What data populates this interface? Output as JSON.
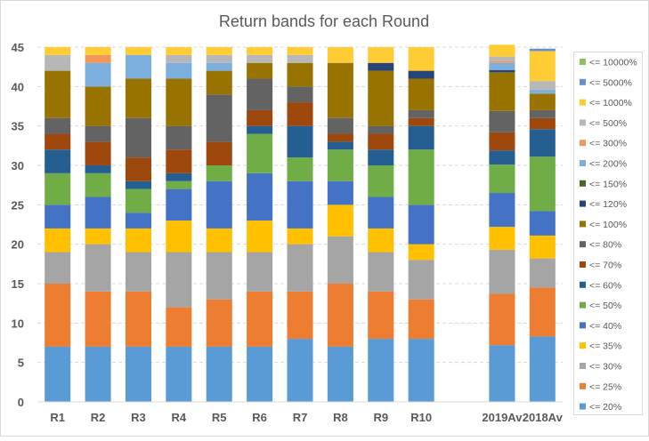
{
  "chart_data": {
    "type": "bar",
    "stacked": true,
    "title": "Return bands for each Round",
    "categories": [
      "R1",
      "R2",
      "R3",
      "R4",
      "R5",
      "R6",
      "R7",
      "R8",
      "R9",
      "R10",
      "",
      "2019Av",
      "2018Av"
    ],
    "ylim": [
      0,
      45
    ],
    "yticks": [
      0,
      5,
      10,
      15,
      20,
      25,
      30,
      35,
      40,
      45
    ],
    "grid": true,
    "legend_position": "right",
    "series": [
      {
        "name": "<= 20%",
        "color": "#5B9BD5",
        "values": [
          7,
          7,
          7,
          7,
          7,
          7,
          8,
          7,
          8,
          8,
          null,
          7.2,
          8.3
        ]
      },
      {
        "name": "<= 25%",
        "color": "#ED7D31",
        "values": [
          8,
          7,
          7,
          5,
          6,
          7,
          6,
          8,
          6,
          5,
          null,
          6.5,
          6.2
        ]
      },
      {
        "name": "<= 30%",
        "color": "#A5A5A5",
        "values": [
          4,
          6,
          5,
          7,
          6,
          5,
          6,
          6,
          5,
          5,
          null,
          5.6,
          3.7
        ]
      },
      {
        "name": "<= 35%",
        "color": "#FFC000",
        "values": [
          3,
          2,
          3,
          4,
          3,
          4,
          2,
          4,
          3,
          2,
          null,
          2.9,
          2.9
        ]
      },
      {
        "name": "<= 40%",
        "color": "#4472C4",
        "values": [
          3,
          4,
          2,
          4,
          6,
          6,
          6,
          3,
          4,
          5,
          null,
          4.3,
          3.1
        ]
      },
      {
        "name": "<= 50%",
        "color": "#70AD47",
        "values": [
          4,
          3,
          3,
          1,
          2,
          5,
          3,
          4,
          4,
          7,
          null,
          3.6,
          6.9
        ]
      },
      {
        "name": "<= 60%",
        "color": "#255E91",
        "values": [
          3,
          1,
          1,
          1,
          0,
          1,
          4,
          1,
          2,
          3,
          null,
          1.8,
          3.5
        ]
      },
      {
        "name": "<= 70%",
        "color": "#9E480E",
        "values": [
          2,
          3,
          3,
          3,
          3,
          2,
          3,
          1,
          2,
          1,
          null,
          2.3,
          1.4
        ]
      },
      {
        "name": "<= 80%",
        "color": "#636363",
        "values": [
          2,
          2,
          5,
          3,
          6,
          4,
          2,
          2,
          1,
          1,
          null,
          2.7,
          1.0
        ]
      },
      {
        "name": "<= 100%",
        "color": "#997300",
        "values": [
          6,
          5,
          5,
          6,
          3,
          2,
          3,
          7,
          7,
          4,
          null,
          4.9,
          2.1
        ]
      },
      {
        "name": "<= 120%",
        "color": "#264478",
        "values": [
          0,
          0,
          0,
          0,
          0,
          0,
          0,
          0,
          1,
          1,
          null,
          0.3,
          0.0
        ]
      },
      {
        "name": "<= 150%",
        "color": "#43682B",
        "values": [
          0,
          0,
          0,
          0,
          0,
          0,
          0,
          0,
          0,
          0,
          null,
          0.0,
          0.0
        ]
      },
      {
        "name": "<= 200%",
        "color": "#7CAFDD",
        "values": [
          0,
          3,
          3,
          2,
          1,
          0,
          0,
          0,
          0,
          0,
          null,
          0.9,
          0.5
        ]
      },
      {
        "name": "<= 300%",
        "color": "#F1975A",
        "values": [
          0,
          1,
          0,
          0,
          0,
          0,
          0,
          0,
          0,
          0,
          null,
          0.2,
          0.0
        ]
      },
      {
        "name": "<= 500%",
        "color": "#B7B7B7",
        "values": [
          2,
          0,
          0,
          1,
          1,
          1,
          1,
          0,
          0,
          0,
          null,
          0.6,
          1.1
        ]
      },
      {
        "name": "<= 1000%",
        "color": "#FFCD33",
        "values": [
          1,
          1,
          1,
          1,
          1,
          1,
          1,
          2,
          2,
          3,
          null,
          1.5,
          3.8
        ]
      },
      {
        "name": "<= 5000%",
        "color": "#698ED0",
        "values": [
          0,
          0,
          0,
          0,
          0,
          0,
          0,
          0,
          0,
          0,
          null,
          0.0,
          0.3
        ]
      },
      {
        "name": "<= 10000%",
        "color": "#8CC168",
        "values": [
          0,
          0,
          0,
          0,
          0,
          0,
          0,
          0,
          0,
          0,
          null,
          0.0,
          0.0
        ]
      }
    ]
  }
}
